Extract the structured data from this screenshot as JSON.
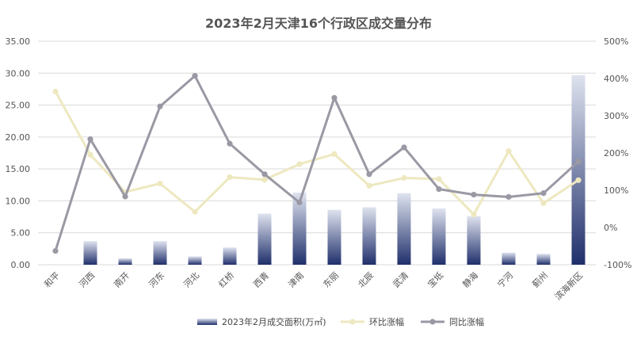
{
  "chart_data": {
    "type": "bar",
    "title": "2023年2月天津16个行政区成交量分布",
    "categories": [
      "和平",
      "河西",
      "南开",
      "河东",
      "河北",
      "红桥",
      "西青",
      "津南",
      "东丽",
      "北辰",
      "武清",
      "宝坻",
      "静海",
      "宁河",
      "蓟州",
      "滨海新区"
    ],
    "series": [
      {
        "name": "2023年2月成交面积(万㎡)",
        "type": "bar",
        "axis": "left",
        "values": [
          0,
          3.7,
          1.0,
          3.7,
          1.3,
          2.7,
          8.0,
          11.3,
          8.6,
          9.0,
          11.2,
          8.8,
          7.6,
          1.9,
          1.7,
          29.7
        ]
      },
      {
        "name": "环比涨幅",
        "type": "line",
        "axis": "right",
        "color": "#ede8c0",
        "values": [
          365,
          195,
          95,
          118,
          42,
          135,
          128,
          170,
          197,
          112,
          133,
          130,
          35,
          205,
          65,
          127
        ]
      },
      {
        "name": "同比涨幅",
        "type": "line",
        "axis": "right",
        "color": "#9a98a3",
        "values": [
          -63,
          237,
          83,
          325,
          407,
          225,
          143,
          67,
          348,
          143,
          215,
          103,
          88,
          82,
          92,
          177
        ]
      }
    ],
    "y_left": {
      "min": 0,
      "max": 35,
      "step": 5,
      "tick_labels": [
        "0.00",
        "5.00",
        "10.00",
        "15.00",
        "20.00",
        "25.00",
        "30.00",
        "35.00"
      ]
    },
    "y_right": {
      "min": -100,
      "max": 500,
      "step": 100,
      "tick_labels": [
        "-100%",
        "0%",
        "100%",
        "200%",
        "300%",
        "400%",
        "500%"
      ]
    },
    "grid": true,
    "legend": "bottom",
    "colors": {
      "bar_dark": "#1f2f6b",
      "bar_light": "#dfe3ef",
      "mom_line": "#ede8c0",
      "yoy_line": "#9a98a3",
      "grid": "#d9d9d9"
    }
  }
}
